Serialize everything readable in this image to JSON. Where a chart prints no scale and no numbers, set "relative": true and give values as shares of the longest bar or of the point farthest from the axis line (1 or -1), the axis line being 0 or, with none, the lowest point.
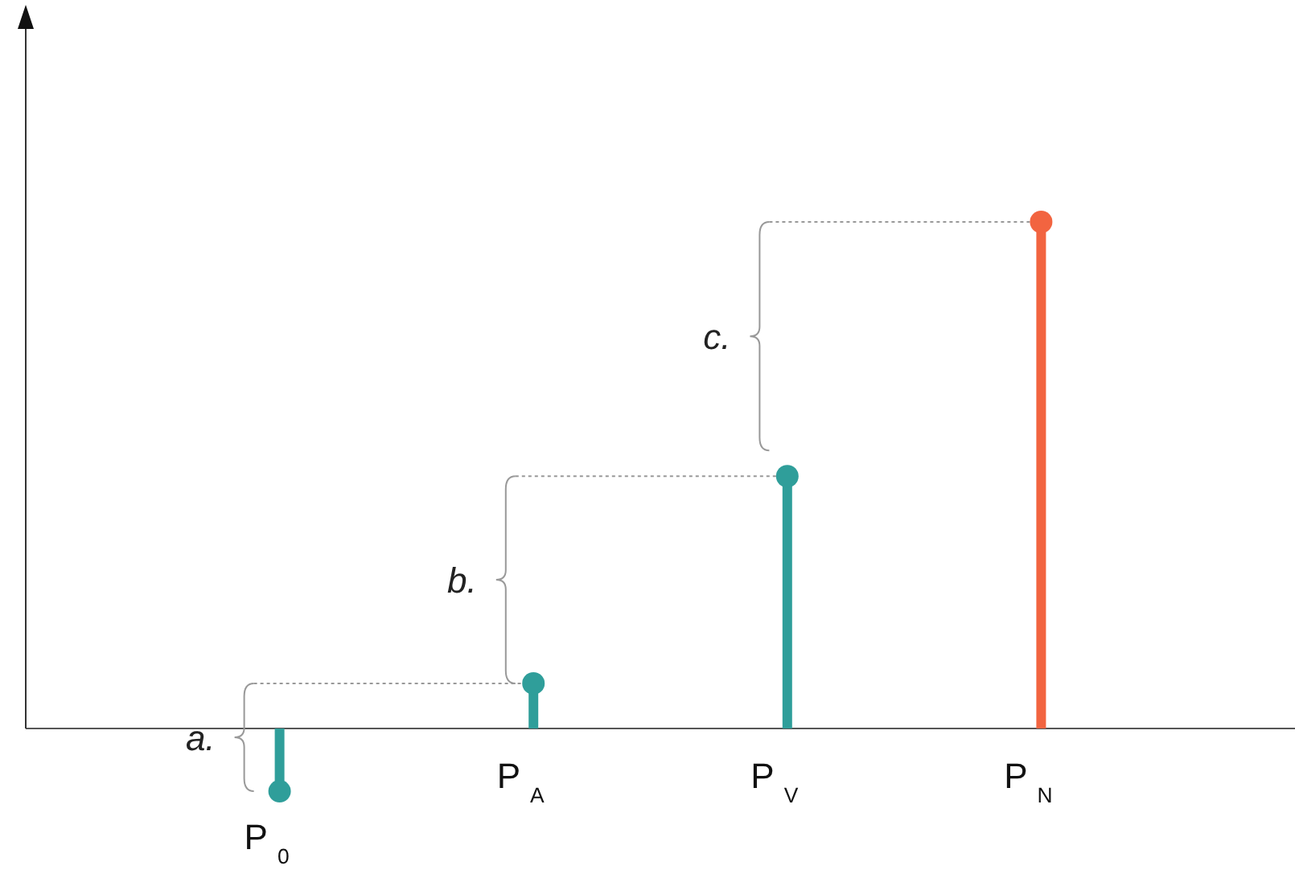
{
  "chart_data": {
    "type": "lollipop",
    "relative": true,
    "categories": [
      "P$_{0}$",
      "P$_{A}$",
      "P$_{V}$",
      "P$_{N}$"
    ],
    "values": [
      -0.124,
      0.089,
      0.498,
      1
    ],
    "colors": [
      "#2f9e9a",
      "#2f9e9a",
      "#2f9e9a",
      "#f26440"
    ],
    "marker": "circle",
    "annotations": [
      "a.",
      "b.",
      "c."
    ]
  }
}
